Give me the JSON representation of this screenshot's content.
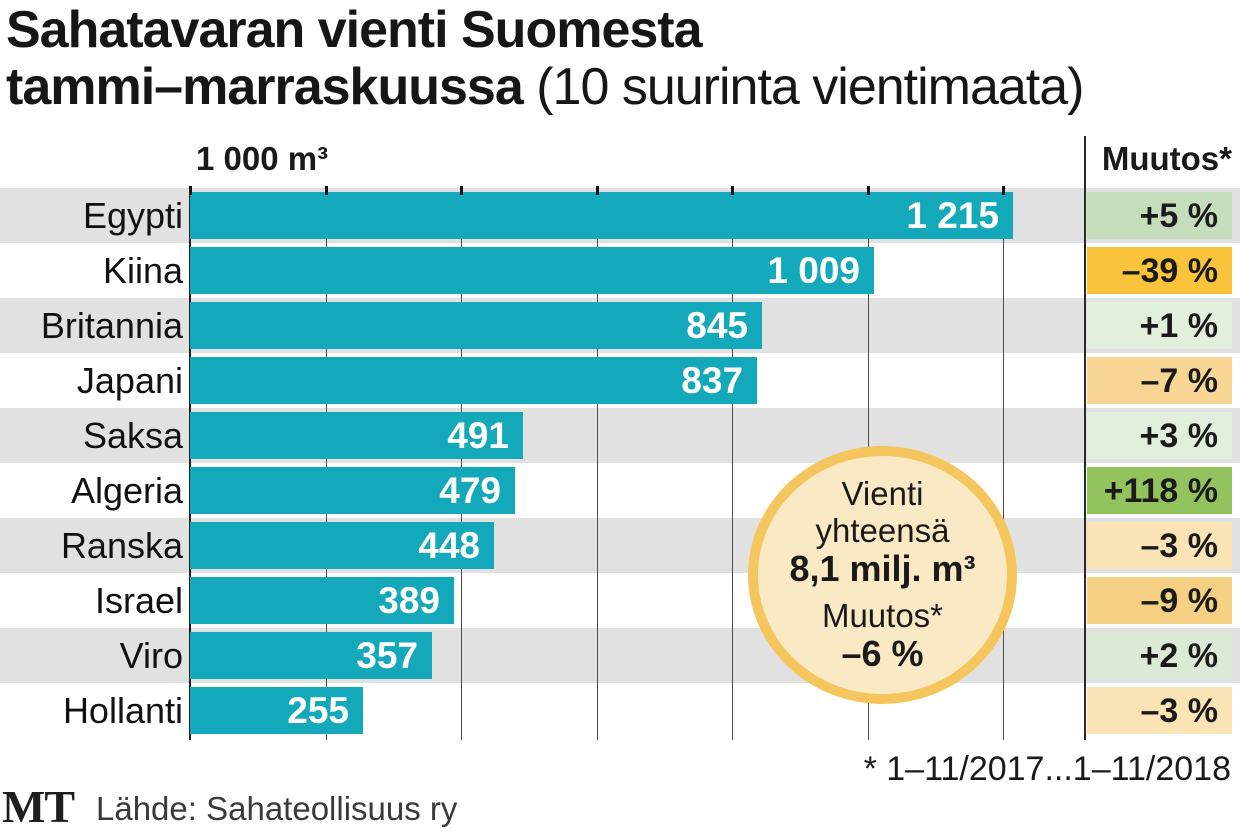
{
  "title": {
    "line1": "Sahatavaran vienti Suomesta",
    "line2_bold": "tammi–marraskuussa",
    "line2_normal": " (10 suurinta vientimaata)"
  },
  "header": {
    "unit_label": "1 000 m³",
    "change_label": "Muutos*"
  },
  "chart_data": {
    "type": "bar",
    "orientation": "horizontal",
    "title": "Sahatavaran vienti Suomesta tammi–marraskuussa (10 suurinta vientimaata)",
    "xlabel": "1 000 m³",
    "xlim": [
      0,
      1320
    ],
    "x_gridlines": [
      0,
      200,
      400,
      600,
      800,
      1000,
      1200
    ],
    "grid": true,
    "bar_color": "#13a9ba",
    "stripe_color": "#e1e1e1",
    "rows": [
      {
        "country": "Egypti",
        "value": 1215,
        "value_label": "1 215",
        "change": "+5 %",
        "change_color": "#c6ddbb"
      },
      {
        "country": "Kiina",
        "value": 1009,
        "value_label": "1 009",
        "change": "–39 %",
        "change_color": "#fac33c"
      },
      {
        "country": "Britannia",
        "value": 845,
        "value_label": "845",
        "change": "+1 %",
        "change_color": "#e3efdd"
      },
      {
        "country": "Japani",
        "value": 837,
        "value_label": "837",
        "change": "–7 %",
        "change_color": "#f7d694"
      },
      {
        "country": "Saksa",
        "value": 491,
        "value_label": "491",
        "change": "+3 %",
        "change_color": "#e0eedb"
      },
      {
        "country": "Algeria",
        "value": 479,
        "value_label": "479",
        "change": "+118 %",
        "change_color": "#93c35d"
      },
      {
        "country": "Ranska",
        "value": 448,
        "value_label": "448",
        "change": "–3 %",
        "change_color": "#fae3b5"
      },
      {
        "country": "Israel",
        "value": 389,
        "value_label": "389",
        "change": "–9 %",
        "change_color": "#f5cf82"
      },
      {
        "country": "Viro",
        "value": 357,
        "value_label": "357",
        "change": "+2 %",
        "change_color": "#dce9d6"
      },
      {
        "country": "Hollanti",
        "value": 255,
        "value_label": "255",
        "change": "–3 %",
        "change_color": "#fae3b5"
      }
    ]
  },
  "annotation": {
    "line1": "Vienti",
    "line2": "yhteensä",
    "line3": "8,1 milj. m³",
    "line4": "Muutos*",
    "line5": "–6 %",
    "fill_color": "#f9e9c4",
    "border_color": "#f6c65e"
  },
  "footnote": "* 1–11/2017...1–11/2018",
  "source": {
    "logo": "MT",
    "text": "Lähde: Sahateollisuus ry"
  }
}
